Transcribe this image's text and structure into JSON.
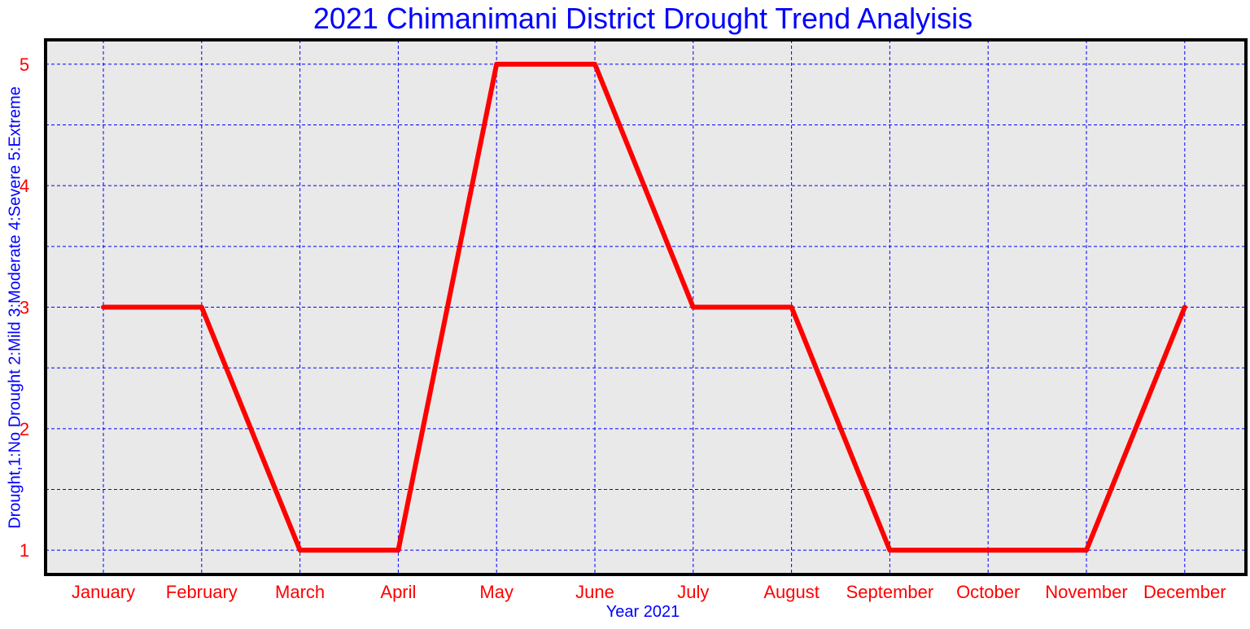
{
  "chart_data": {
    "type": "line",
    "title": "2021 Chimanimani District Drought Trend Analyisis",
    "xlabel": "Year 2021",
    "ylabel": "Drought,1:No Drought 2:Mild 3:Moderate 4:Severe 5:Extreme",
    "categories": [
      "January",
      "February",
      "March",
      "April",
      "May",
      "June",
      "July",
      "August",
      "September",
      "October",
      "November",
      "December"
    ],
    "series": [
      {
        "values": [
          3,
          3,
          1,
          1,
          5,
          5,
          3,
          3,
          1,
          1,
          1,
          3
        ]
      }
    ],
    "ylim": [
      0.8,
      5.2
    ],
    "yticks": [
      1,
      2,
      3,
      4,
      5
    ],
    "ygrid": [
      1,
      1.5,
      2,
      2.5,
      3,
      3.5,
      4,
      4.5,
      5
    ],
    "grid": true,
    "colors": {
      "line": "#ff0000",
      "grid": "#0000ff",
      "plot_background": "#e9e9e9",
      "frame": "#000000",
      "title": "#0000ff",
      "tick_labels": "#ff0000"
    }
  }
}
